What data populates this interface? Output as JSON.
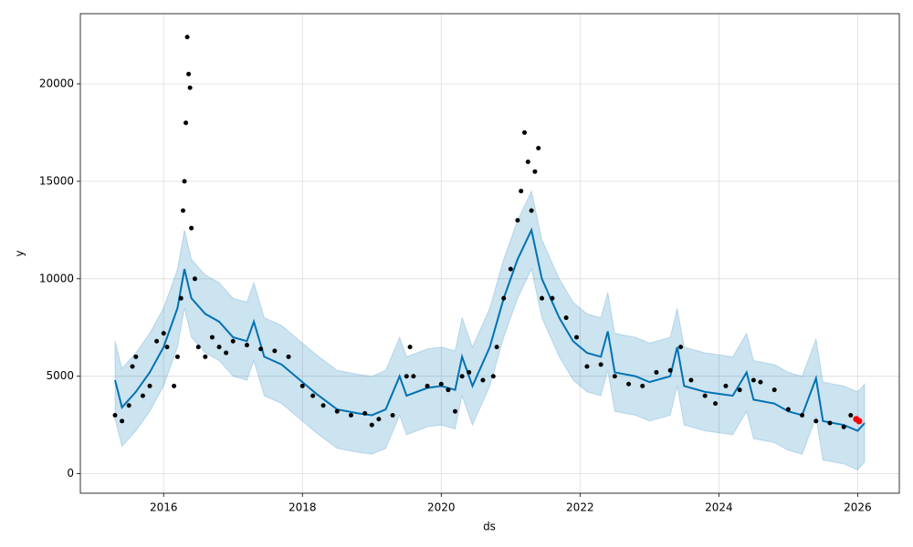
{
  "chart_data": {
    "type": "line",
    "xlabel": "ds",
    "ylabel": "y",
    "xlim": [
      2014.8,
      2026.6
    ],
    "ylim": [
      -1000,
      23600
    ],
    "xticks": [
      2016,
      2018,
      2020,
      2022,
      2024,
      2026
    ],
    "yticks": [
      0,
      5000,
      10000,
      15000,
      20000
    ],
    "grid": true,
    "series": [
      {
        "type": "band",
        "color": "#0072b2",
        "x": [
          2015.3,
          2015.4,
          2015.6,
          2015.8,
          2016.0,
          2016.1,
          2016.2,
          2016.3,
          2016.4,
          2016.6,
          2016.8,
          2017.0,
          2017.2,
          2017.3,
          2017.45,
          2017.7,
          2018.0,
          2018.2,
          2018.5,
          2018.8,
          2019.0,
          2019.2,
          2019.4,
          2019.5,
          2019.8,
          2020.0,
          2020.2,
          2020.3,
          2020.45,
          2020.7,
          2020.9,
          2021.1,
          2021.3,
          2021.45,
          2021.7,
          2021.9,
          2022.1,
          2022.3,
          2022.4,
          2022.5,
          2022.8,
          2023.0,
          2023.3,
          2023.4,
          2023.5,
          2023.8,
          2024.0,
          2024.2,
          2024.4,
          2024.5,
          2024.8,
          2025.0,
          2025.2,
          2025.4,
          2025.5,
          2025.8,
          2026.0,
          2026.1
        ],
        "lower": [
          2800,
          1400,
          2200,
          3200,
          4500,
          5500,
          6500,
          8500,
          7000,
          6200,
          5800,
          5000,
          4800,
          5800,
          4000,
          3600,
          2700,
          2100,
          1300,
          1100,
          1000,
          1300,
          3000,
          2000,
          2400,
          2500,
          2300,
          4000,
          2500,
          4500,
          7000,
          9000,
          10500,
          8000,
          6000,
          4800,
          4200,
          4000,
          5300,
          3200,
          3000,
          2700,
          3000,
          4500,
          2500,
          2200,
          2100,
          2000,
          3200,
          1800,
          1600,
          1200,
          1000,
          2900,
          700,
          500,
          200,
          600
        ],
        "upper": [
          6800,
          5400,
          6200,
          7200,
          8500,
          9500,
          10500,
          12500,
          11000,
          10200,
          9800,
          9000,
          8800,
          9800,
          8000,
          7600,
          6700,
          6100,
          5300,
          5100,
          5000,
          5300,
          7000,
          6000,
          6400,
          6500,
          6300,
          8000,
          6500,
          8500,
          11000,
          13000,
          14500,
          12000,
          10000,
          8800,
          8200,
          8000,
          9300,
          7200,
          7000,
          6700,
          7000,
          8500,
          6500,
          6200,
          6100,
          6000,
          7200,
          5800,
          5600,
          5200,
          5000,
          6900,
          4700,
          4500,
          4200,
          4600
        ]
      },
      {
        "type": "line",
        "color": "#0072b2",
        "x": [
          2015.3,
          2015.4,
          2015.6,
          2015.8,
          2016.0,
          2016.1,
          2016.2,
          2016.3,
          2016.4,
          2016.6,
          2016.8,
          2017.0,
          2017.2,
          2017.3,
          2017.45,
          2017.7,
          2018.0,
          2018.2,
          2018.5,
          2018.8,
          2019.0,
          2019.2,
          2019.4,
          2019.5,
          2019.8,
          2020.0,
          2020.2,
          2020.3,
          2020.45,
          2020.7,
          2020.9,
          2021.1,
          2021.3,
          2021.45,
          2021.7,
          2021.9,
          2022.1,
          2022.3,
          2022.4,
          2022.5,
          2022.8,
          2023.0,
          2023.3,
          2023.4,
          2023.5,
          2023.8,
          2024.0,
          2024.2,
          2024.4,
          2024.5,
          2024.8,
          2025.0,
          2025.2,
          2025.4,
          2025.5,
          2025.8,
          2026.0,
          2026.1
        ],
        "values": [
          4800,
          3400,
          4200,
          5200,
          6500,
          7500,
          8500,
          10500,
          9000,
          8200,
          7800,
          7000,
          6800,
          7800,
          6000,
          5600,
          4700,
          4100,
          3300,
          3100,
          3000,
          3300,
          5000,
          4000,
          4400,
          4500,
          4300,
          6000,
          4500,
          6500,
          9000,
          11000,
          12500,
          10000,
          8000,
          6800,
          6200,
          6000,
          7300,
          5200,
          5000,
          4700,
          5000,
          6500,
          4500,
          4200,
          4100,
          4000,
          5200,
          3800,
          3600,
          3200,
          3000,
          4900,
          2700,
          2500,
          2200,
          2600
        ]
      },
      {
        "type": "scatter",
        "color": "#000000",
        "x": [
          2015.3,
          2015.4,
          2015.5,
          2015.55,
          2015.6,
          2015.7,
          2015.8,
          2015.9,
          2016.0,
          2016.05,
          2016.15,
          2016.2,
          2016.25,
          2016.28,
          2016.3,
          2016.32,
          2016.34,
          2016.36,
          2016.38,
          2016.4,
          2016.45,
          2016.5,
          2016.6,
          2016.7,
          2016.8,
          2016.9,
          2017.0,
          2017.2,
          2017.4,
          2017.6,
          2017.8,
          2018.0,
          2018.15,
          2018.3,
          2018.5,
          2018.7,
          2018.9,
          2019.0,
          2019.1,
          2019.3,
          2019.5,
          2019.55,
          2019.6,
          2019.8,
          2020.0,
          2020.1,
          2020.2,
          2020.3,
          2020.4,
          2020.6,
          2020.75,
          2020.8,
          2020.9,
          2021.0,
          2021.1,
          2021.15,
          2021.2,
          2021.25,
          2021.3,
          2021.35,
          2021.4,
          2021.45,
          2021.6,
          2021.8,
          2021.95,
          2022.1,
          2022.3,
          2022.5,
          2022.7,
          2022.9,
          2023.1,
          2023.3,
          2023.45,
          2023.6,
          2023.8,
          2023.95,
          2024.1,
          2024.3,
          2024.5,
          2024.6,
          2024.8,
          2025.0,
          2025.2,
          2025.4,
          2025.6,
          2025.8,
          2025.9
        ],
        "values": [
          3000,
          2700,
          3500,
          5500,
          6000,
          4000,
          4500,
          6800,
          7200,
          6500,
          4500,
          6000,
          9000,
          13500,
          15000,
          18000,
          22400,
          20500,
          19800,
          12600,
          10000,
          6500,
          6000,
          7000,
          6500,
          6200,
          6800,
          6600,
          6400,
          6300,
          6000,
          4500,
          4000,
          3500,
          3200,
          3000,
          3100,
          2500,
          2800,
          3000,
          5000,
          6500,
          5000,
          4500,
          4600,
          4300,
          3200,
          5000,
          5200,
          4800,
          5000,
          6500,
          9000,
          10500,
          13000,
          14500,
          17500,
          16000,
          13500,
          15500,
          16700,
          9000,
          9000,
          8000,
          7000,
          5500,
          5600,
          5000,
          4600,
          4500,
          5200,
          5300,
          6500,
          4800,
          4000,
          3600,
          4500,
          4300,
          4800,
          4700,
          4300,
          3300,
          3000,
          2700,
          2600,
          2400,
          3000
        ]
      },
      {
        "type": "scatter",
        "color": "#ff0000",
        "x": [
          2025.98,
          2026.02
        ],
        "values": [
          2800,
          2700
        ]
      }
    ]
  }
}
